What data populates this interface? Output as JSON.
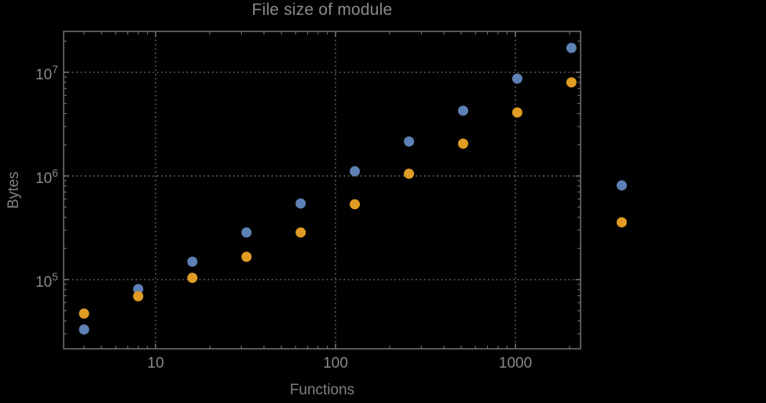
{
  "window": {
    "background_color": "#000000"
  },
  "chart_data": {
    "type": "scatter",
    "title": "File size of module",
    "xlabel": "Functions",
    "ylabel": "Bytes",
    "x_scale": "log",
    "y_scale": "log",
    "xlim": [
      3.08,
      2303
    ],
    "ylim": [
      21500,
      24800000
    ],
    "grid": "dotted",
    "legend": "none",
    "frame": true,
    "plot_range_clipping": false,
    "x_major_ticks": [
      10,
      100,
      1000
    ],
    "x_major_tick_labels": [
      "10",
      "100",
      "1000"
    ],
    "y_major_ticks": [
      100000,
      1000000,
      10000000
    ],
    "y_major_tick_labels": [
      {
        "base": "10",
        "exp": "5"
      },
      {
        "base": "10",
        "exp": "6"
      },
      {
        "base": "10",
        "exp": "7"
      }
    ],
    "series": [
      {
        "name": "series-1-blue",
        "color": "#5e81b5",
        "marker": "circle",
        "points": [
          [
            4,
            33000
          ],
          [
            8,
            81000
          ],
          [
            16,
            149000
          ],
          [
            32,
            285000
          ],
          [
            64,
            543000
          ],
          [
            128,
            1110000
          ],
          [
            256,
            2150000
          ],
          [
            512,
            4260000
          ],
          [
            1024,
            8700000
          ],
          [
            2048,
            17200000
          ],
          [
            3900,
            810000
          ]
        ]
      },
      {
        "name": "series-2-orange",
        "color": "#e09c24",
        "marker": "circle",
        "points": [
          [
            4,
            47000
          ],
          [
            8,
            69000
          ],
          [
            16,
            104000
          ],
          [
            32,
            166000
          ],
          [
            64,
            285000
          ],
          [
            128,
            533000
          ],
          [
            256,
            1050000
          ],
          [
            512,
            2050000
          ],
          [
            1024,
            4100000
          ],
          [
            2048,
            8000000
          ],
          [
            3900,
            357000
          ]
        ]
      }
    ],
    "styles": {
      "frame_color": "#6f6f6f",
      "grid_color": "#666666",
      "tick_color": "#6f6f6f",
      "tick_label_color": "#8a8a8a",
      "title_color": "#8a8a8a",
      "axis_label_color": "#808080",
      "marker_radius": 6.5
    }
  }
}
